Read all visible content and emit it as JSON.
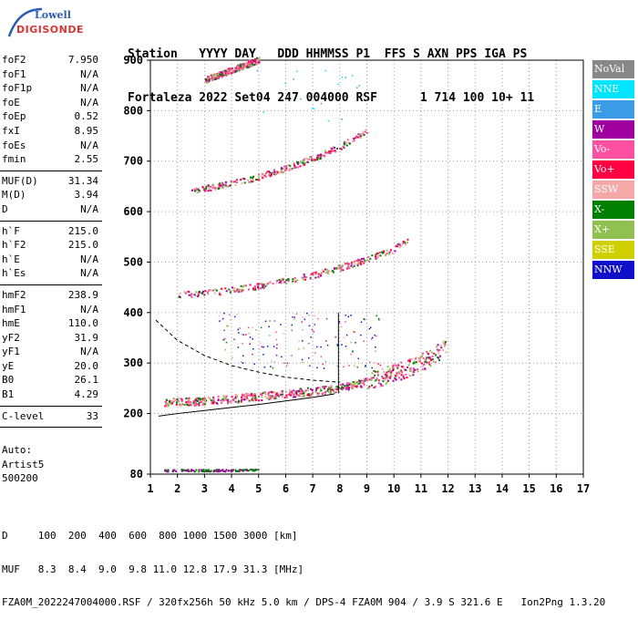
{
  "header": {
    "line1": "Station   YYYY DAY   DDD HHMMSS P1  FFS S AXN PPS IGA PS",
    "line2": "Fortaleza 2022 Set04 247 004000 RSF      1 714 100 10+ 11"
  },
  "logo": {
    "top": "Lowell",
    "main": "DIGISONDE"
  },
  "params_group1": [
    {
      "name": "foF2",
      "value": "7.950"
    },
    {
      "name": "foF1",
      "value": "N/A"
    },
    {
      "name": "foF1p",
      "value": "N/A"
    },
    {
      "name": "foE",
      "value": "N/A"
    },
    {
      "name": "foEp",
      "value": "0.52"
    },
    {
      "name": "fxI",
      "value": "8.95"
    },
    {
      "name": "foEs",
      "value": "N/A"
    },
    {
      "name": "fmin",
      "value": "2.55"
    }
  ],
  "params_group2": [
    {
      "name": "MUF(D)",
      "value": "31.34"
    },
    {
      "name": "M(D)",
      "value": "3.94"
    },
    {
      "name": "D",
      "value": "N/A"
    }
  ],
  "params_group3": [
    {
      "name": "h`F",
      "value": "215.0"
    },
    {
      "name": "h`F2",
      "value": "215.0"
    },
    {
      "name": "h`E",
      "value": "N/A"
    },
    {
      "name": "h`Es",
      "value": "N/A"
    }
  ],
  "params_group4": [
    {
      "name": "hmF2",
      "value": "238.9"
    },
    {
      "name": "hmF1",
      "value": "N/A"
    },
    {
      "name": "hmE",
      "value": "110.0"
    },
    {
      "name": "yF2",
      "value": "31.9"
    },
    {
      "name": "yF1",
      "value": "N/A"
    },
    {
      "name": "yE",
      "value": "20.0"
    },
    {
      "name": "B0",
      "value": "26.1"
    },
    {
      "name": "B1",
      "value": "4.29"
    }
  ],
  "params_group5": [
    {
      "name": "C-level",
      "value": "33"
    }
  ],
  "auto": {
    "line1": "Auto:",
    "line2": "Artist5",
    "line3": "500200"
  },
  "legend": [
    {
      "label": "NoVal",
      "color": "#888888"
    },
    {
      "label": "NNE",
      "color": "#00e5ff"
    },
    {
      "label": "E",
      "color": "#3a9be6"
    },
    {
      "label": "W",
      "color": "#a0009f"
    },
    {
      "label": "Vo-",
      "color": "#ff4fa0"
    },
    {
      "label": "Vo+",
      "color": "#ff0040"
    },
    {
      "label": "SSW",
      "color": "#f4a8a8"
    },
    {
      "label": "X-",
      "color": "#008000"
    },
    {
      "label": "X+",
      "color": "#90c050"
    },
    {
      "label": "SSE",
      "color": "#d0d000"
    },
    {
      "label": "NNW",
      "color": "#1010c8"
    }
  ],
  "footer": {
    "line1": "D     100  200  400  600  800 1000 1500 3000 [km]",
    "line2": "MUF   8.3  8.4  9.0  9.8 11.0 12.8 17.9 31.3 [MHz]",
    "line3": "FZA0M_2022247004000.RSF / 320fx256h 50 kHz 5.0 km / DPS-4 FZA0M 904 / 3.9 S 321.6 E   Ion2Png 1.3.20"
  },
  "chart_data": {
    "type": "scatter",
    "title": "",
    "xlabel": "",
    "ylabel": "",
    "xlim": [
      1,
      17
    ],
    "ylim": [
      80,
      900
    ],
    "xticks": [
      1,
      2,
      3,
      4,
      5,
      6,
      7,
      8,
      9,
      10,
      11,
      12,
      13,
      14,
      15,
      16,
      17
    ],
    "yticks": [
      80,
      200,
      300,
      400,
      500,
      600,
      700,
      800,
      900
    ],
    "grid": true,
    "traces": [
      {
        "name": "F-trace",
        "color": "#ff0040",
        "points": [
          [
            1.5,
            222
          ],
          [
            2,
            222
          ],
          [
            3,
            224
          ],
          [
            4,
            228
          ],
          [
            5,
            233
          ],
          [
            6,
            238
          ],
          [
            7,
            243
          ],
          [
            7.5,
            246
          ],
          [
            8,
            250
          ],
          [
            8.5,
            256
          ],
          [
            9,
            262
          ],
          [
            9.5,
            268
          ],
          [
            10,
            276
          ],
          [
            10.5,
            286
          ],
          [
            11,
            298
          ],
          [
            11.5,
            312
          ],
          [
            11.9,
            330
          ]
        ]
      },
      {
        "name": "2F-trace",
        "color": "#c8508a",
        "points": [
          [
            2,
            435
          ],
          [
            3,
            438
          ],
          [
            4,
            444
          ],
          [
            5,
            452
          ],
          [
            6,
            462
          ],
          [
            7,
            474
          ],
          [
            8,
            488
          ],
          [
            9,
            505
          ],
          [
            10,
            525
          ],
          [
            10.5,
            545
          ]
        ]
      },
      {
        "name": "3F-trace",
        "color": "#c8508a",
        "points": [
          [
            2.5,
            640
          ],
          [
            3,
            645
          ],
          [
            4,
            655
          ],
          [
            5,
            668
          ],
          [
            6,
            685
          ],
          [
            7,
            705
          ],
          [
            8,
            728
          ],
          [
            9,
            760
          ]
        ]
      },
      {
        "name": "4F-trace",
        "color": "#c8508a",
        "points": [
          [
            3,
            860
          ],
          [
            3.5,
            870
          ],
          [
            4,
            880
          ],
          [
            5,
            900
          ]
        ]
      },
      {
        "name": "E-trace",
        "color": "#a0009f",
        "points": [
          [
            1.5,
            88
          ],
          [
            2,
            88
          ],
          [
            3,
            88
          ],
          [
            4,
            88
          ],
          [
            5,
            90
          ]
        ]
      }
    ],
    "profile_curve": [
      [
        1.3,
        195
      ],
      [
        2,
        200
      ],
      [
        3,
        206
      ],
      [
        4,
        212
      ],
      [
        5,
        218
      ],
      [
        6,
        225
      ],
      [
        7,
        232
      ],
      [
        7.8,
        239
      ]
    ],
    "dashed_curve": [
      [
        1.2,
        385
      ],
      [
        2,
        345
      ],
      [
        3,
        315
      ],
      [
        4,
        295
      ],
      [
        5,
        282
      ],
      [
        6,
        272
      ],
      [
        7,
        266
      ],
      [
        8,
        262
      ]
    ]
  }
}
